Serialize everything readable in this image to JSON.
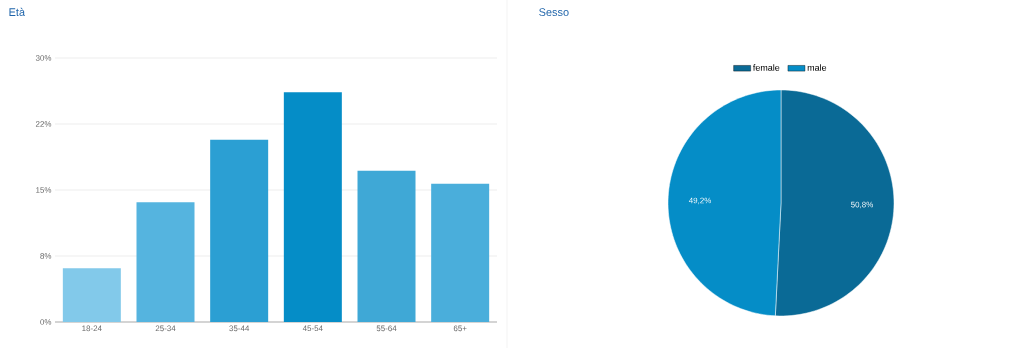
{
  "chart_data": [
    {
      "type": "bar",
      "title": "Età",
      "categories": [
        "18-24",
        "25-34",
        "35-44",
        "45-54",
        "55-64",
        "65+"
      ],
      "values": [
        6.1,
        13.6,
        20.7,
        26.1,
        17.2,
        15.7
      ],
      "colors": [
        "#82c9ea",
        "#55b4df",
        "#2b9fd3",
        "#058dc7",
        "#3fa8d6",
        "#4aaedb"
      ],
      "ylim": [
        0,
        30
      ],
      "yticks": [
        {
          "value": 0,
          "label": "0%"
        },
        {
          "value": 7.5,
          "label": "8%"
        },
        {
          "value": 15,
          "label": "15%"
        },
        {
          "value": 22.5,
          "label": "22%"
        },
        {
          "value": 30,
          "label": "30%"
        }
      ],
      "grid": "y"
    },
    {
      "type": "pie",
      "title": "Sesso",
      "categories": [
        "female",
        "male"
      ],
      "values": [
        50.8,
        49.2
      ],
      "colors": [
        "#0a6a96",
        "#058dc7"
      ],
      "value_labels": [
        "50,8%",
        "49,2%"
      ],
      "legend": "top"
    }
  ]
}
